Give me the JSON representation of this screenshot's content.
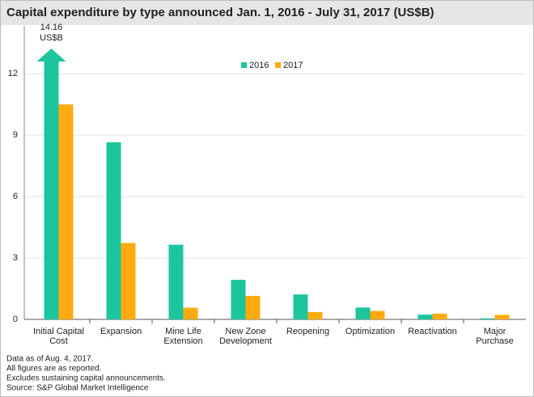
{
  "chart_data": {
    "type": "bar",
    "title": "Capital expenditure by type announced Jan. 1, 2016 - July 31, 2017 (US$B)",
    "categories": [
      [
        "Initial Capital",
        "Cost"
      ],
      [
        "Expansion"
      ],
      [
        "Mine Life",
        "Extension"
      ],
      [
        "New Zone",
        "Development"
      ],
      [
        "Reopening"
      ],
      [
        "Optimization"
      ],
      [
        "Reactivation"
      ],
      [
        "Major",
        "Purchase"
      ]
    ],
    "series": [
      {
        "name": "2016",
        "color": "#1cc59d",
        "values": [
          14.16,
          8.65,
          3.65,
          1.93,
          1.22,
          0.58,
          0.23,
          0.05
        ],
        "value_labels": [
          "14.16",
          null,
          null,
          null,
          null,
          null,
          null,
          null
        ],
        "value_unit": "US$B"
      },
      {
        "name": "2017",
        "color": "#ffab0f",
        "values": [
          10.5,
          3.73,
          0.57,
          1.15,
          0.36,
          0.41,
          0.28,
          0.22
        ]
      }
    ],
    "ylim": [
      0,
      12.6
    ],
    "yticks": [
      0,
      3,
      6,
      9,
      12
    ],
    "grid": true,
    "legend": "top",
    "footnotes": [
      "Data as of Aug. 4, 2017.",
      "All figures are as reported.",
      "Excludes sustaining capital announcements.",
      "Source: S&P Global Market Intelligence"
    ]
  }
}
